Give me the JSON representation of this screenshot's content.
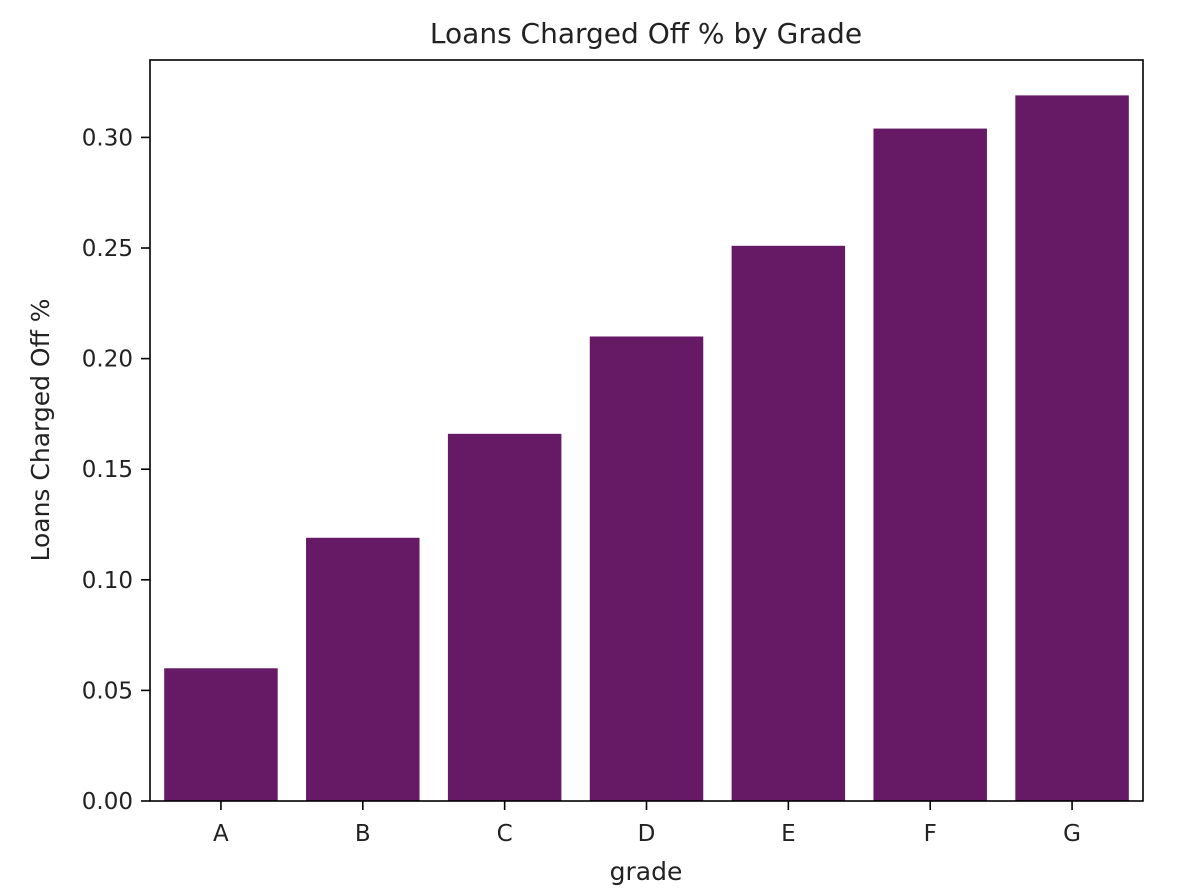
{
  "chart_data": {
    "type": "bar",
    "title": "Loans Charged Off % by Grade",
    "xlabel": "grade",
    "ylabel": "Loans Charged Off %",
    "categories": [
      "A",
      "B",
      "C",
      "D",
      "E",
      "F",
      "G"
    ],
    "values": [
      0.06,
      0.119,
      0.166,
      0.21,
      0.251,
      0.304,
      0.319
    ],
    "ylim": [
      0,
      0.335
    ],
    "yticks": [
      "0.00",
      "0.05",
      "0.10",
      "0.15",
      "0.20",
      "0.25",
      "0.30"
    ],
    "grid": false,
    "legend": "none",
    "bar_color": "#661a66"
  }
}
